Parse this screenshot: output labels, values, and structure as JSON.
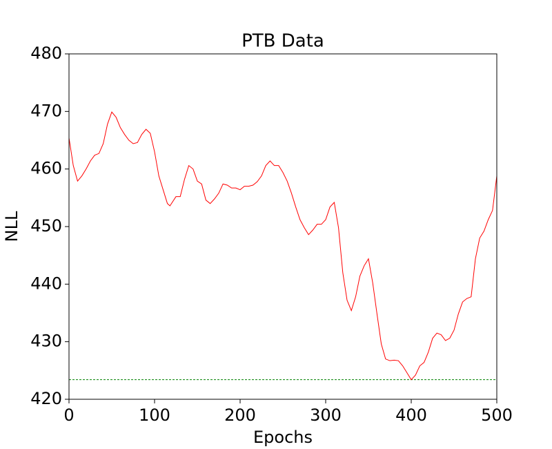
{
  "chart_data": {
    "type": "line",
    "title": "PTB Data",
    "x_label": "Epochs",
    "y_label": "NLL",
    "x": [
      0,
      5,
      10,
      15,
      20,
      25,
      30,
      35,
      40,
      45,
      50,
      55,
      60,
      65,
      70,
      75,
      80,
      85,
      90,
      95,
      100,
      105,
      110,
      115,
      118,
      125,
      130,
      135,
      140,
      145,
      150,
      155,
      160,
      165,
      170,
      175,
      180,
      185,
      190,
      195,
      200,
      205,
      210,
      215,
      220,
      225,
      230,
      235,
      240,
      245,
      250,
      255,
      260,
      265,
      270,
      275,
      280,
      285,
      290,
      295,
      300,
      305,
      310,
      315,
      320,
      325,
      330,
      335,
      340,
      345,
      350,
      355,
      360,
      365,
      370,
      375,
      380,
      385,
      390,
      395,
      400,
      405,
      410,
      415,
      420,
      425,
      430,
      435,
      440,
      445,
      450,
      455,
      460,
      465,
      470,
      475,
      480,
      485,
      490,
      495,
      500
    ],
    "series": [
      {
        "name": "NLL",
        "color": "#ff0000",
        "values": [
          465.4,
          460.6,
          457.9,
          458.8,
          460,
          461.4,
          462.4,
          462.7,
          464.4,
          467.8,
          469.9,
          469,
          467.2,
          466,
          465,
          464.4,
          464.6,
          466,
          466.9,
          466.2,
          463,
          458.8,
          456.4,
          454,
          453.6,
          455.2,
          455.2,
          458.2,
          460.6,
          460,
          457.9,
          457.4,
          454.6,
          454,
          454.8,
          455.8,
          457.4,
          457.2,
          456.7,
          456.7,
          456.4,
          457,
          457,
          457.2,
          457.8,
          458.8,
          460.6,
          461.4,
          460.6,
          460.6,
          459.4,
          457.9,
          455.8,
          453.4,
          451.2,
          449.8,
          448.6,
          449.4,
          450.4,
          450.4,
          451.2,
          453.4,
          454.2,
          449.8,
          442,
          437.2,
          435.4,
          437.8,
          441.4,
          443.2,
          444.4,
          440.2,
          434.8,
          429.6,
          427,
          426.7,
          426.8,
          426.7,
          425.8,
          424.6,
          423.4,
          424.2,
          425.8,
          426.4,
          428.2,
          430.6,
          431.5,
          431.2,
          430.2,
          430.6,
          432,
          434.8,
          436.9,
          437.5,
          437.8,
          444.4,
          448,
          449.2,
          451.2,
          452.8,
          458.8
        ]
      }
    ],
    "reference_line": {
      "value": 423.4,
      "color": "#008000"
    },
    "xlim": [
      0,
      500
    ],
    "xticks": [
      0,
      100,
      200,
      300,
      400,
      500
    ],
    "ylim": [
      420,
      480
    ],
    "yticks": [
      420,
      430,
      440,
      450,
      460,
      470,
      480
    ]
  }
}
